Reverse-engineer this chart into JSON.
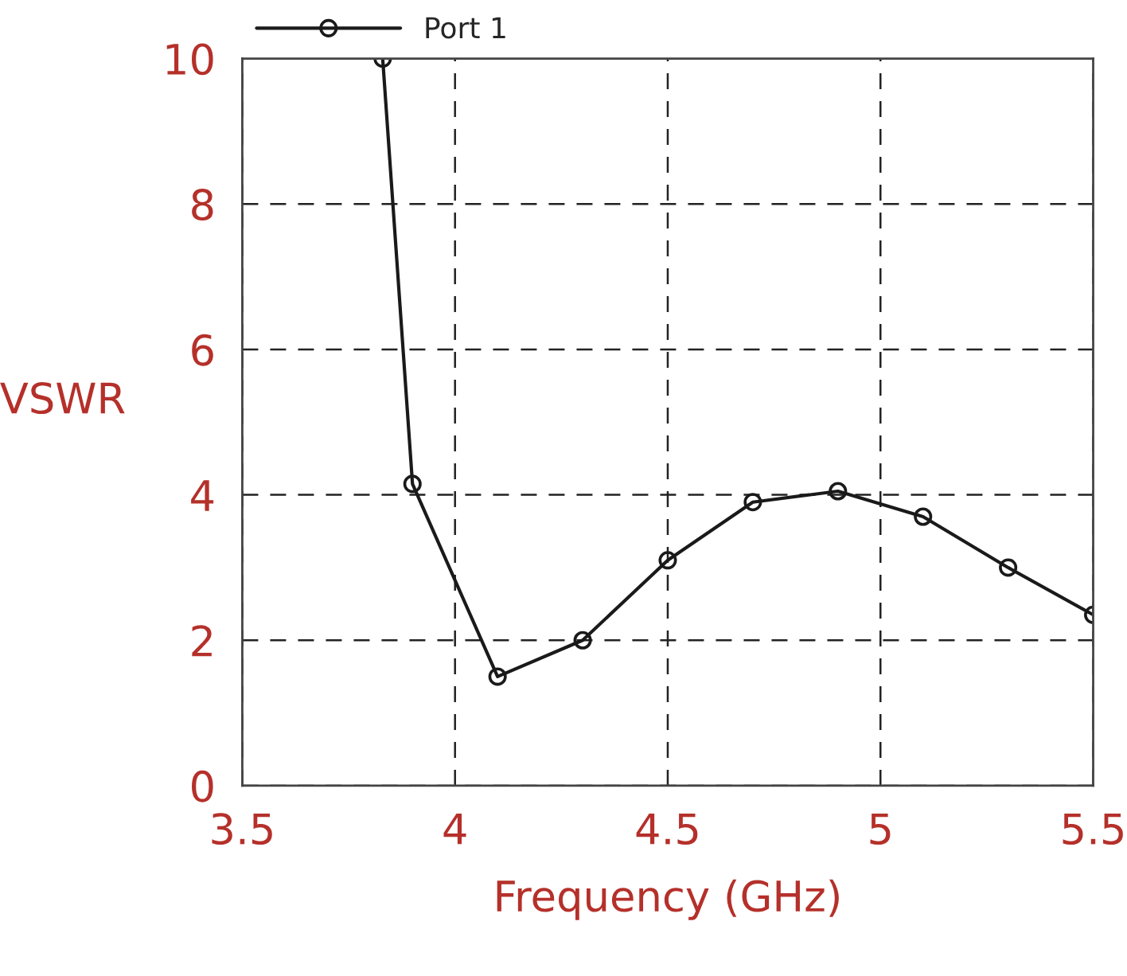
{
  "chart_data": {
    "type": "line",
    "xlabel": "Frequency (GHz)",
    "ylabel": "VSWR",
    "x": [
      3.83,
      3.9,
      4.1,
      4.3,
      4.5,
      4.7,
      4.9,
      5.1,
      5.3,
      5.5
    ],
    "series": [
      {
        "name": "Port 1",
        "color": "#1a1a1a",
        "values": [
          10,
          4.15,
          1.5,
          2.0,
          3.1,
          3.9,
          4.05,
          3.7,
          3.0,
          2.35
        ]
      }
    ],
    "xlim": [
      3.5,
      5.5
    ],
    "xticks": [
      3.5,
      4,
      4.5,
      5,
      5.5
    ],
    "ylim": [
      0,
      10
    ],
    "yticks": [
      0,
      2,
      4,
      6,
      8,
      10
    ],
    "grid": true,
    "legend": "top left",
    "marker": "circle",
    "line_style": "solid"
  }
}
